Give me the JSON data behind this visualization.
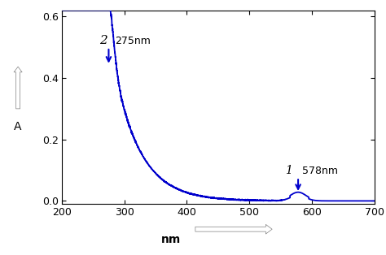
{
  "xlim": [
    200,
    700
  ],
  "ylim": [
    -0.01,
    0.62
  ],
  "xticks": [
    200,
    300,
    400,
    500,
    600,
    700
  ],
  "yticks": [
    0.0,
    0.2,
    0.4,
    0.6
  ],
  "xlabel": "nm",
  "ylabel": "A",
  "line_color": "#0000CC",
  "peak1_nm": 275,
  "peak1_label": "275nm",
  "peak1_A": 0.435,
  "peak2_nm": 578,
  "peak2_label": "578nm",
  "peak2_A": 0.022,
  "bg_color": "#ffffff"
}
